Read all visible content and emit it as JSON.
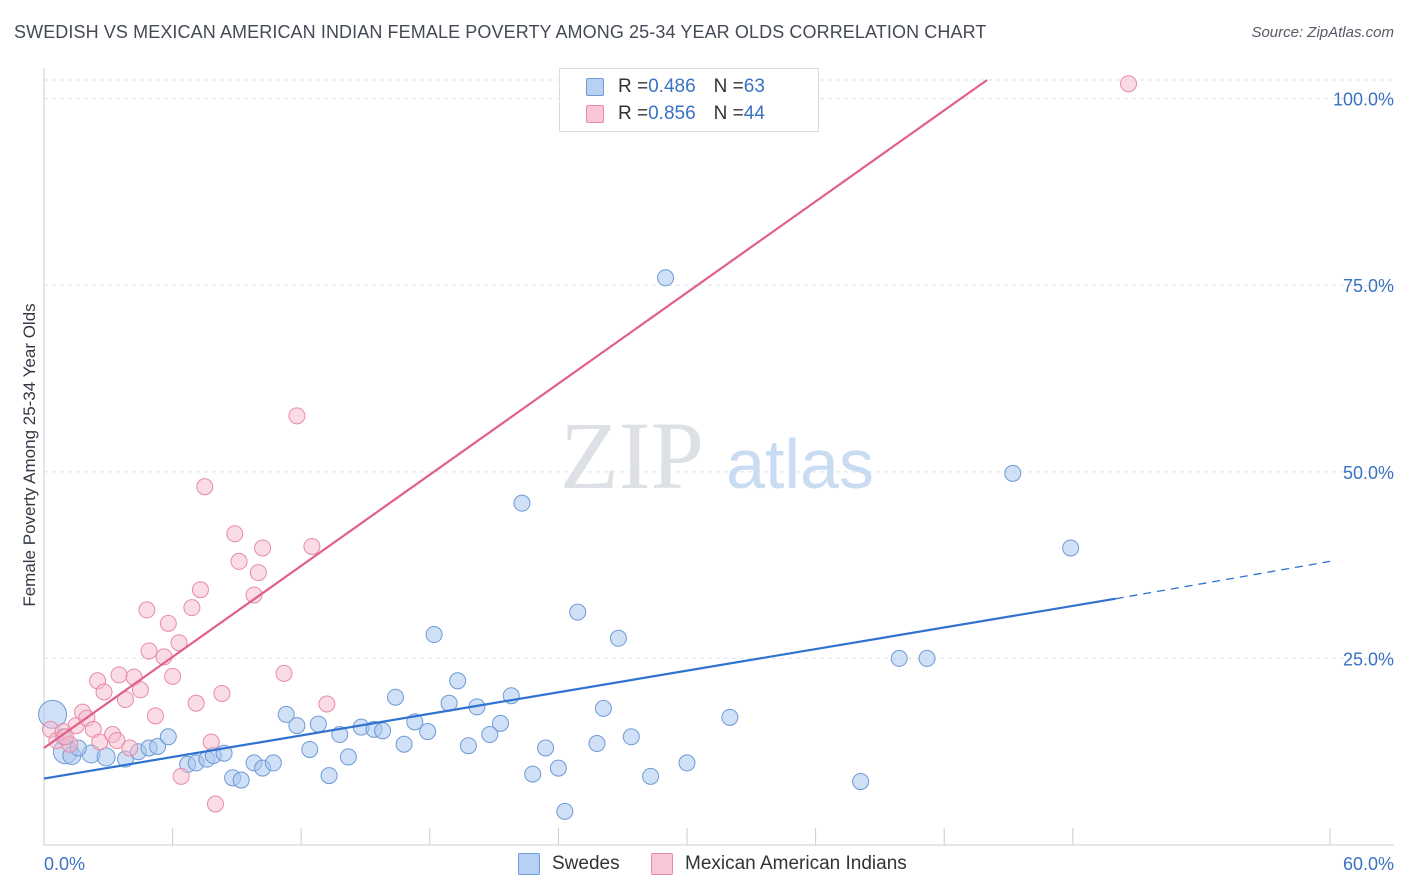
{
  "header": {
    "title": "SWEDISH VS MEXICAN AMERICAN INDIAN FEMALE POVERTY AMONG 25-34 YEAR OLDS CORRELATION CHART",
    "source": "Source: ZipAtlas.com"
  },
  "watermark": {
    "zip": "ZIP",
    "atlas": "atlas"
  },
  "legend": {
    "items": [
      {
        "r_label": "R = ",
        "r_value": "0.486",
        "n_label": "N = ",
        "n_value": "63"
      },
      {
        "r_label": "R = ",
        "r_value": "0.856",
        "n_label": "N = ",
        "n_value": "44"
      }
    ]
  },
  "bottom_legend": {
    "swedes": "Swedes",
    "mexican": "Mexican American Indians"
  },
  "colors": {
    "blue_fill": "#a9c6ee",
    "blue_stroke": "#6e9ad6",
    "blue_line": "#2f72cf",
    "pink_fill": "#f6b9cc",
    "pink_stroke": "#e98aa8",
    "pink_line": "#e0608a",
    "tick_label": "#3a72c4",
    "grid": "#dfe3ea"
  },
  "chart_data": {
    "type": "scatter",
    "title": "SWEDISH VS MEXICAN AMERICAN INDIAN FEMALE POVERTY AMONG 25-34 YEAR OLDS CORRELATION CHART",
    "xlabel": "",
    "ylabel": "Female Poverty Among 25-34 Year Olds",
    "xlim": [
      0,
      60
    ],
    "ylim": [
      0,
      102.5
    ],
    "x_tick_labels": [
      "0.0%",
      "60.0%"
    ],
    "y_ticks": [
      25,
      50,
      75,
      100
    ],
    "y_tick_labels": [
      "25.0%",
      "50.0%",
      "75.0%",
      "100.0%"
    ],
    "grid": "horizontal dashed",
    "legend_position": "top-center",
    "series": [
      {
        "name": "Swedes",
        "r": 0.486,
        "n": 63,
        "trend": {
          "x0": 0,
          "y0": 8.9,
          "x1": 50,
          "y1": 33.0,
          "dashed_to_x": 60,
          "dashed_to_y": 38.0
        },
        "points": [
          [
            0.4,
            17.5,
            12
          ],
          [
            1.0,
            12.5,
            10
          ],
          [
            1.3,
            12.0,
            7
          ],
          [
            2.2,
            12.2,
            7
          ],
          [
            2.9,
            11.8,
            7
          ],
          [
            3.8,
            11.5,
            6
          ],
          [
            4.4,
            12.5,
            6
          ],
          [
            4.9,
            13.0,
            6
          ],
          [
            5.3,
            13.2,
            6
          ],
          [
            5.8,
            14.5,
            6
          ],
          [
            6.7,
            10.8,
            6
          ],
          [
            7.1,
            11.0,
            6
          ],
          [
            7.6,
            11.5,
            6
          ],
          [
            7.9,
            12.0,
            6
          ],
          [
            8.4,
            12.3,
            6
          ],
          [
            8.8,
            9.0,
            6
          ],
          [
            9.2,
            8.7,
            6
          ],
          [
            9.8,
            11.0,
            6
          ],
          [
            10.2,
            10.3,
            6
          ],
          [
            10.7,
            11.0,
            6
          ],
          [
            11.3,
            17.5,
            6
          ],
          [
            11.8,
            16.0,
            6
          ],
          [
            12.4,
            12.8,
            6
          ],
          [
            12.8,
            16.2,
            6
          ],
          [
            13.3,
            9.3,
            6
          ],
          [
            13.8,
            14.8,
            6
          ],
          [
            14.2,
            11.8,
            6
          ],
          [
            14.8,
            15.8,
            6
          ],
          [
            15.4,
            15.5,
            6
          ],
          [
            15.8,
            15.3,
            6
          ],
          [
            16.4,
            19.8,
            6
          ],
          [
            16.8,
            13.5,
            6
          ],
          [
            17.3,
            16.5,
            6
          ],
          [
            17.9,
            15.2,
            6
          ],
          [
            18.2,
            28.2,
            6
          ],
          [
            18.9,
            19.0,
            6
          ],
          [
            19.3,
            22.0,
            6
          ],
          [
            19.8,
            13.3,
            6
          ],
          [
            20.2,
            18.5,
            6
          ],
          [
            20.8,
            14.8,
            6
          ],
          [
            21.3,
            16.3,
            6
          ],
          [
            21.8,
            20.0,
            6
          ],
          [
            22.3,
            45.8,
            6
          ],
          [
            22.8,
            9.5,
            6
          ],
          [
            23.4,
            13.0,
            6
          ],
          [
            24.0,
            10.3,
            6
          ],
          [
            24.3,
            4.5,
            6
          ],
          [
            24.9,
            31.2,
            6
          ],
          [
            25.8,
            13.6,
            6
          ],
          [
            26.1,
            18.3,
            6
          ],
          [
            26.8,
            27.7,
            6
          ],
          [
            27.4,
            14.5,
            6
          ],
          [
            28.3,
            9.2,
            6
          ],
          [
            29.0,
            76.0,
            6
          ],
          [
            30.0,
            11.0,
            6
          ],
          [
            32.0,
            17.1,
            6
          ],
          [
            38.1,
            8.5,
            6
          ],
          [
            39.9,
            25.0,
            6
          ],
          [
            41.2,
            25.0,
            6
          ],
          [
            45.2,
            49.8,
            6
          ],
          [
            47.9,
            39.8,
            6
          ],
          [
            0.9,
            14.5,
            6
          ],
          [
            1.6,
            13.0,
            6
          ]
        ]
      },
      {
        "name": "Mexican American Indians",
        "r": 0.856,
        "n": 44,
        "trend": {
          "x0": 0,
          "y0": 13.0,
          "x1": 44,
          "y1": 102.5
        },
        "points": [
          [
            0.3,
            15.5,
            7
          ],
          [
            0.6,
            14.0,
            7
          ],
          [
            0.9,
            15.2,
            7
          ],
          [
            1.2,
            13.5,
            7
          ],
          [
            1.5,
            16.0,
            7
          ],
          [
            1.8,
            17.8,
            7
          ],
          [
            2.0,
            17.0,
            7
          ],
          [
            2.3,
            15.5,
            7
          ],
          [
            2.6,
            13.8,
            7
          ],
          [
            2.5,
            22.0,
            7
          ],
          [
            2.8,
            20.5,
            7
          ],
          [
            3.2,
            14.8,
            7
          ],
          [
            3.4,
            14.0,
            7
          ],
          [
            3.5,
            22.8,
            7
          ],
          [
            3.8,
            19.5,
            7
          ],
          [
            4.0,
            13.0,
            7
          ],
          [
            4.2,
            22.5,
            7
          ],
          [
            4.5,
            20.8,
            7
          ],
          [
            4.8,
            31.5,
            7
          ],
          [
            4.9,
            26.0,
            7
          ],
          [
            5.2,
            17.3,
            7
          ],
          [
            5.6,
            25.2,
            7
          ],
          [
            5.8,
            29.7,
            7
          ],
          [
            6.0,
            22.6,
            7
          ],
          [
            6.3,
            27.1,
            7
          ],
          [
            6.4,
            9.2,
            7
          ],
          [
            6.9,
            31.8,
            7
          ],
          [
            7.1,
            19.0,
            7
          ],
          [
            7.3,
            34.2,
            7
          ],
          [
            7.5,
            48.0,
            7
          ],
          [
            7.8,
            13.8,
            7
          ],
          [
            8.0,
            5.5,
            7
          ],
          [
            8.3,
            20.3,
            7
          ],
          [
            8.9,
            41.7,
            7
          ],
          [
            9.1,
            38.0,
            7
          ],
          [
            9.8,
            33.5,
            7
          ],
          [
            10.0,
            36.5,
            7
          ],
          [
            10.2,
            39.8,
            7
          ],
          [
            11.2,
            23.0,
            7
          ],
          [
            11.8,
            57.5,
            7
          ],
          [
            12.5,
            40.0,
            7
          ],
          [
            13.2,
            18.9,
            7
          ],
          [
            1.0,
            14.5,
            7
          ],
          [
            50.6,
            102.0,
            7
          ]
        ]
      }
    ]
  }
}
